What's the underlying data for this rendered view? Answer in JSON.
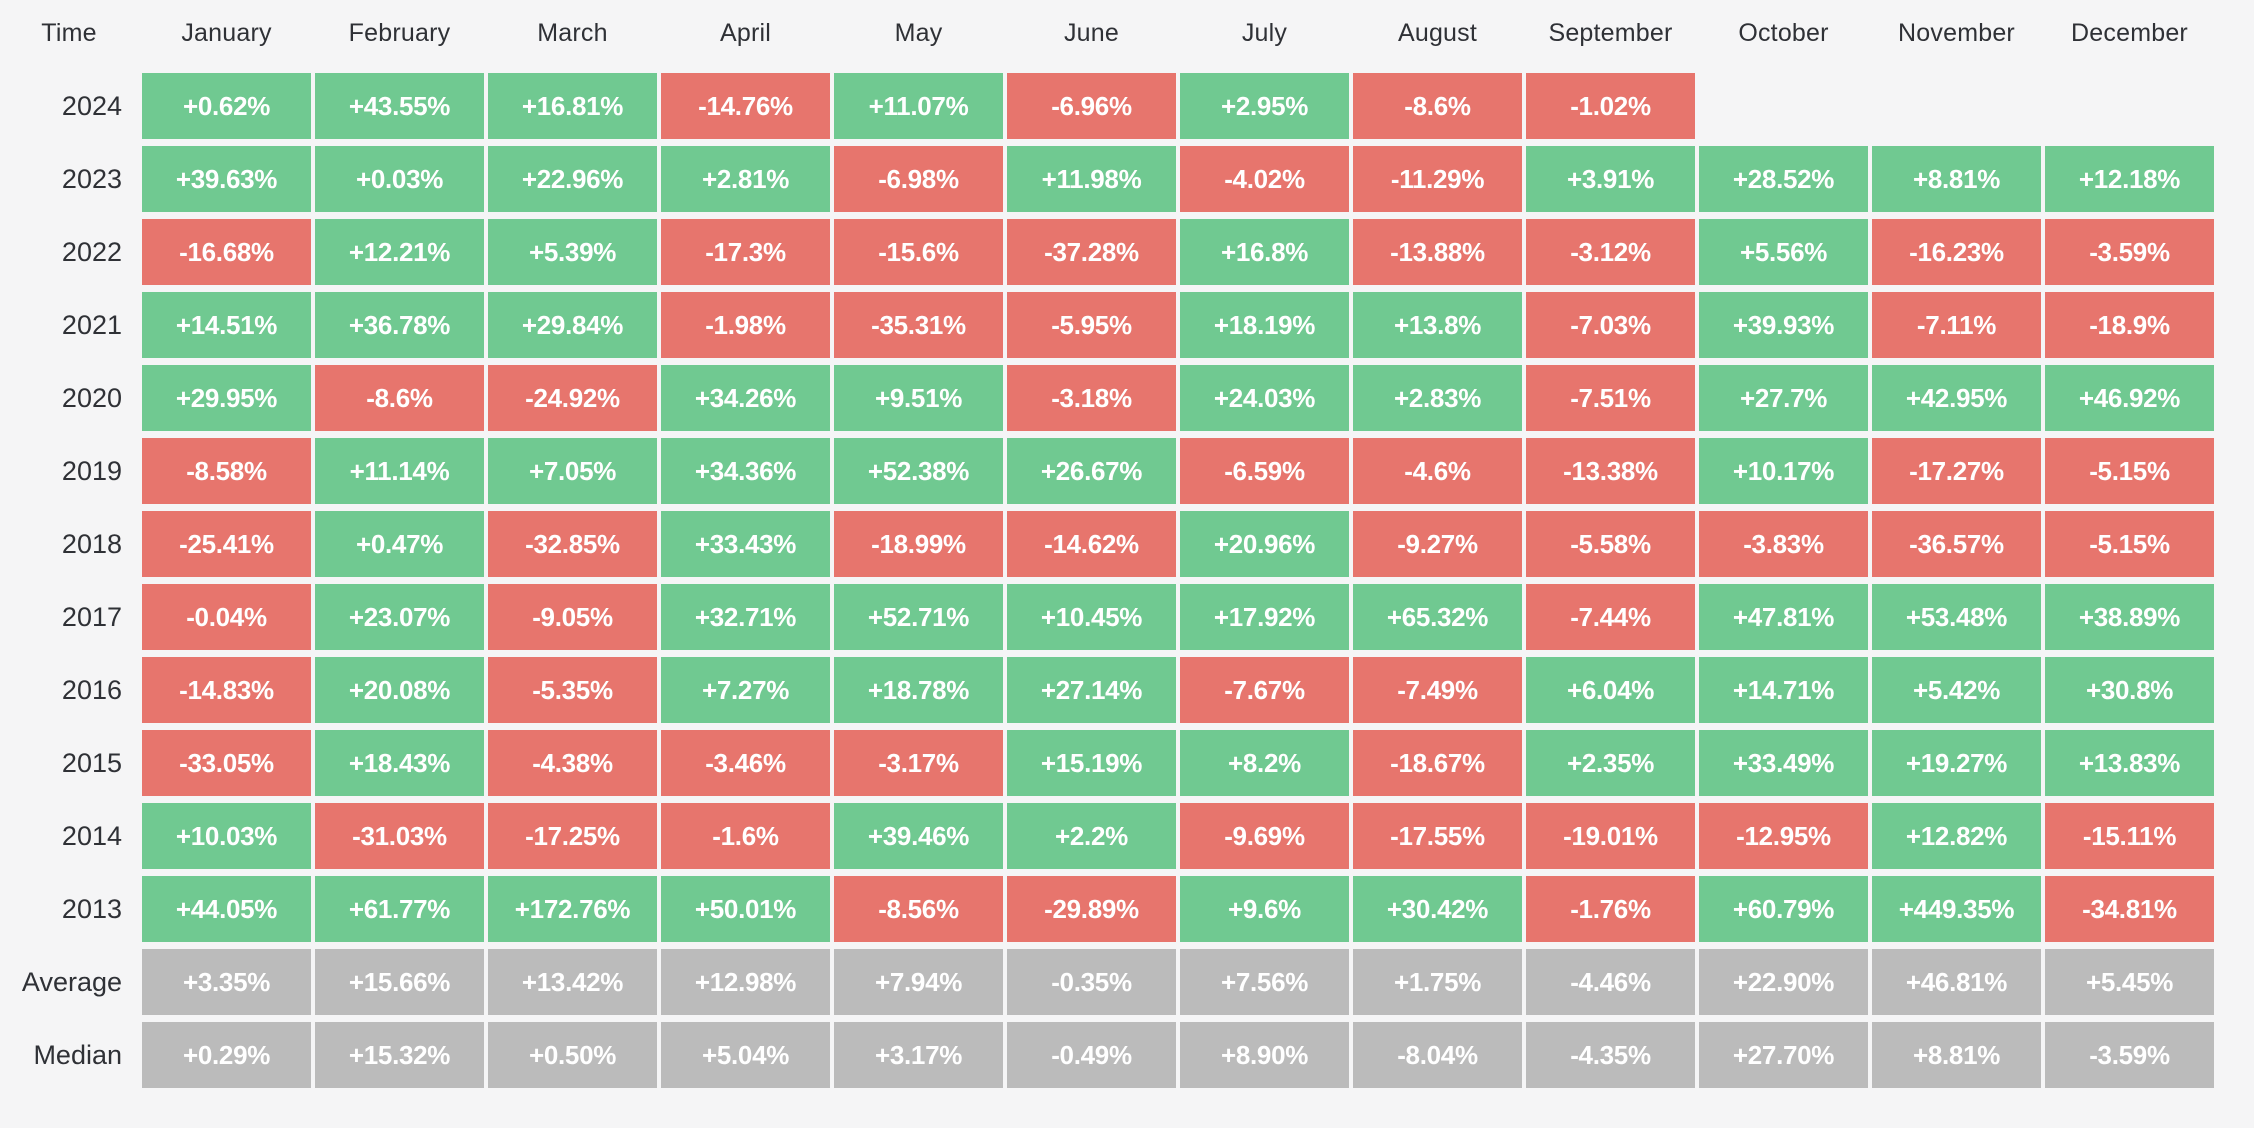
{
  "table": {
    "corner_label": "Time",
    "months": [
      "January",
      "February",
      "March",
      "April",
      "May",
      "June",
      "July",
      "August",
      "September",
      "October",
      "November",
      "December"
    ],
    "rows": [
      {
        "label": "2024",
        "type": "year",
        "cells": [
          "+0.62%",
          "+43.55%",
          "+16.81%",
          "-14.76%",
          "+11.07%",
          "-6.96%",
          "+2.95%",
          "-8.6%",
          "-1.02%",
          null,
          null,
          null
        ]
      },
      {
        "label": "2023",
        "type": "year",
        "cells": [
          "+39.63%",
          "+0.03%",
          "+22.96%",
          "+2.81%",
          "-6.98%",
          "+11.98%",
          "-4.02%",
          "-11.29%",
          "+3.91%",
          "+28.52%",
          "+8.81%",
          "+12.18%"
        ]
      },
      {
        "label": "2022",
        "type": "year",
        "cells": [
          "-16.68%",
          "+12.21%",
          "+5.39%",
          "-17.3%",
          "-15.6%",
          "-37.28%",
          "+16.8%",
          "-13.88%",
          "-3.12%",
          "+5.56%",
          "-16.23%",
          "-3.59%"
        ]
      },
      {
        "label": "2021",
        "type": "year",
        "cells": [
          "+14.51%",
          "+36.78%",
          "+29.84%",
          "-1.98%",
          "-35.31%",
          "-5.95%",
          "+18.19%",
          "+13.8%",
          "-7.03%",
          "+39.93%",
          "-7.11%",
          "-18.9%"
        ]
      },
      {
        "label": "2020",
        "type": "year",
        "cells": [
          "+29.95%",
          "-8.6%",
          "-24.92%",
          "+34.26%",
          "+9.51%",
          "-3.18%",
          "+24.03%",
          "+2.83%",
          "-7.51%",
          "+27.7%",
          "+42.95%",
          "+46.92%"
        ]
      },
      {
        "label": "2019",
        "type": "year",
        "cells": [
          "-8.58%",
          "+11.14%",
          "+7.05%",
          "+34.36%",
          "+52.38%",
          "+26.67%",
          "-6.59%",
          "-4.6%",
          "-13.38%",
          "+10.17%",
          "-17.27%",
          "-5.15%"
        ]
      },
      {
        "label": "2018",
        "type": "year",
        "cells": [
          "-25.41%",
          "+0.47%",
          "-32.85%",
          "+33.43%",
          "-18.99%",
          "-14.62%",
          "+20.96%",
          "-9.27%",
          "-5.58%",
          "-3.83%",
          "-36.57%",
          "-5.15%"
        ]
      },
      {
        "label": "2017",
        "type": "year",
        "cells": [
          "-0.04%",
          "+23.07%",
          "-9.05%",
          "+32.71%",
          "+52.71%",
          "+10.45%",
          "+17.92%",
          "+65.32%",
          "-7.44%",
          "+47.81%",
          "+53.48%",
          "+38.89%"
        ]
      },
      {
        "label": "2016",
        "type": "year",
        "cells": [
          "-14.83%",
          "+20.08%",
          "-5.35%",
          "+7.27%",
          "+18.78%",
          "+27.14%",
          "-7.67%",
          "-7.49%",
          "+6.04%",
          "+14.71%",
          "+5.42%",
          "+30.8%"
        ]
      },
      {
        "label": "2015",
        "type": "year",
        "cells": [
          "-33.05%",
          "+18.43%",
          "-4.38%",
          "-3.46%",
          "-3.17%",
          "+15.19%",
          "+8.2%",
          "-18.67%",
          "+2.35%",
          "+33.49%",
          "+19.27%",
          "+13.83%"
        ]
      },
      {
        "label": "2014",
        "type": "year",
        "cells": [
          "+10.03%",
          "-31.03%",
          "-17.25%",
          "-1.6%",
          "+39.46%",
          "+2.2%",
          "-9.69%",
          "-17.55%",
          "-19.01%",
          "-12.95%",
          "+12.82%",
          "-15.11%"
        ]
      },
      {
        "label": "2013",
        "type": "year",
        "cells": [
          "+44.05%",
          "+61.77%",
          "+172.76%",
          "+50.01%",
          "-8.56%",
          "-29.89%",
          "+9.6%",
          "+30.42%",
          "-1.76%",
          "+60.79%",
          "+449.35%",
          "-34.81%"
        ]
      },
      {
        "label": "Average",
        "type": "summary",
        "cells": [
          "+3.35%",
          "+15.66%",
          "+13.42%",
          "+12.98%",
          "+7.94%",
          "-0.35%",
          "+7.56%",
          "+1.75%",
          "-4.46%",
          "+22.90%",
          "+46.81%",
          "+5.45%"
        ]
      },
      {
        "label": "Median",
        "type": "summary",
        "cells": [
          "+0.29%",
          "+15.32%",
          "+0.50%",
          "+5.04%",
          "+3.17%",
          "-0.49%",
          "+8.90%",
          "-8.04%",
          "-4.35%",
          "+27.70%",
          "+8.81%",
          "-3.59%"
        ]
      }
    ],
    "colors": {
      "positive": "#70c991",
      "negative": "#e7756d",
      "summary": "#bbbbbb",
      "page_bg": "#f5f5f6",
      "header_text": "#2f3136",
      "cell_text": "#ffffff"
    }
  },
  "chart_data": {
    "type": "heatmap",
    "title": "Monthly returns heatmap",
    "x_categories": [
      "January",
      "February",
      "March",
      "April",
      "May",
      "June",
      "July",
      "August",
      "September",
      "October",
      "November",
      "December"
    ],
    "y_categories": [
      "2024",
      "2023",
      "2022",
      "2021",
      "2020",
      "2019",
      "2018",
      "2017",
      "2016",
      "2015",
      "2014",
      "2013",
      "Average",
      "Median"
    ],
    "values_percent": [
      [
        0.62,
        43.55,
        16.81,
        -14.76,
        11.07,
        -6.96,
        2.95,
        -8.6,
        -1.02,
        null,
        null,
        null
      ],
      [
        39.63,
        0.03,
        22.96,
        2.81,
        -6.98,
        11.98,
        -4.02,
        -11.29,
        3.91,
        28.52,
        8.81,
        12.18
      ],
      [
        -16.68,
        12.21,
        5.39,
        -17.3,
        -15.6,
        -37.28,
        16.8,
        -13.88,
        -3.12,
        5.56,
        -16.23,
        -3.59
      ],
      [
        14.51,
        36.78,
        29.84,
        -1.98,
        -35.31,
        -5.95,
        18.19,
        13.8,
        -7.03,
        39.93,
        -7.11,
        -18.9
      ],
      [
        29.95,
        -8.6,
        -24.92,
        34.26,
        9.51,
        -3.18,
        24.03,
        2.83,
        -7.51,
        27.7,
        42.95,
        46.92
      ],
      [
        -8.58,
        11.14,
        7.05,
        34.36,
        52.38,
        26.67,
        -6.59,
        -4.6,
        -13.38,
        10.17,
        -17.27,
        -5.15
      ],
      [
        -25.41,
        0.47,
        -32.85,
        33.43,
        -18.99,
        -14.62,
        20.96,
        -9.27,
        -5.58,
        -3.83,
        -36.57,
        -5.15
      ],
      [
        -0.04,
        23.07,
        -9.05,
        32.71,
        52.71,
        10.45,
        17.92,
        65.32,
        -7.44,
        47.81,
        53.48,
        38.89
      ],
      [
        -14.83,
        20.08,
        -5.35,
        7.27,
        18.78,
        27.14,
        -7.67,
        -7.49,
        6.04,
        14.71,
        5.42,
        30.8
      ],
      [
        -33.05,
        18.43,
        -4.38,
        -3.46,
        -3.17,
        15.19,
        8.2,
        -18.67,
        2.35,
        33.49,
        19.27,
        13.83
      ],
      [
        10.03,
        -31.03,
        -17.25,
        -1.6,
        39.46,
        2.2,
        -9.69,
        -17.55,
        -19.01,
        -12.95,
        12.82,
        -15.11
      ],
      [
        44.05,
        61.77,
        172.76,
        50.01,
        -8.56,
        -29.89,
        9.6,
        30.42,
        -1.76,
        60.79,
        449.35,
        -34.81
      ],
      [
        3.35,
        15.66,
        13.42,
        12.98,
        7.94,
        -0.35,
        7.56,
        1.75,
        -4.46,
        22.9,
        46.81,
        5.45
      ],
      [
        0.29,
        15.32,
        0.5,
        5.04,
        3.17,
        -0.49,
        8.9,
        -8.04,
        -4.35,
        27.7,
        8.81,
        -3.59
      ]
    ],
    "legend_position": "none",
    "grid": false,
    "color_rule": "green when positive, red when negative, gray for Average/Median summary rows"
  }
}
